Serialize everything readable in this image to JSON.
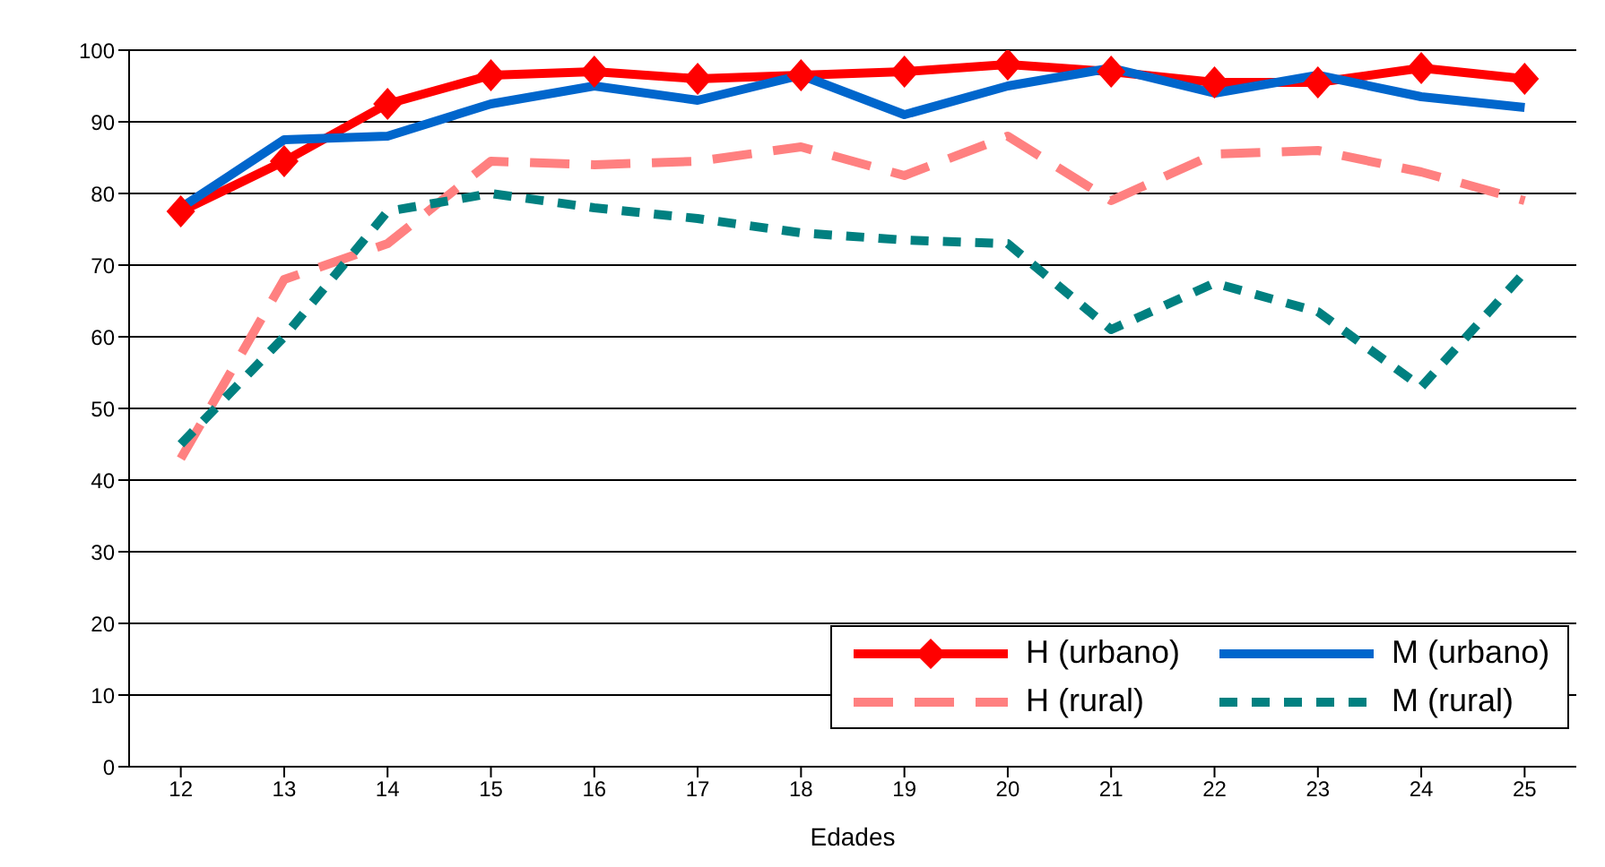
{
  "chart_data": {
    "type": "line",
    "xlabel": "Edades",
    "x": [
      12,
      13,
      14,
      15,
      16,
      17,
      18,
      19,
      20,
      21,
      22,
      23,
      24,
      25
    ],
    "xlim": [
      11.5,
      25.5
    ],
    "xticks": [
      12,
      13,
      14,
      15,
      16,
      17,
      18,
      19,
      20,
      21,
      22,
      23,
      24,
      25
    ],
    "ylim": [
      0,
      100
    ],
    "yticks": [
      0,
      10,
      20,
      30,
      40,
      50,
      60,
      70,
      80,
      90,
      100
    ],
    "grid": "y",
    "legend": "bottom right",
    "series": [
      {
        "name": "H (urbano)",
        "color": "#ff0000",
        "marker": "diamond",
        "line_style": "solid",
        "values": [
          77.5,
          84.5,
          92.5,
          96.5,
          97,
          96,
          96.5,
          97,
          98,
          97,
          95.5,
          95.5,
          97.5,
          96
        ]
      },
      {
        "name": "M (urbano)",
        "color": "#0066cc",
        "marker": "none",
        "line_style": "solid",
        "values": [
          78,
          87.5,
          88,
          92.5,
          95,
          93,
          96.5,
          91,
          95,
          97.5,
          94,
          96.5,
          93.5,
          92
        ]
      },
      {
        "name": "H (rural)",
        "color": "#ff8080",
        "marker": "none",
        "line_style": "dashed",
        "values": [
          43,
          68,
          73,
          84.5,
          84,
          84.5,
          86.5,
          82.5,
          88,
          79,
          85.5,
          86,
          83,
          79
        ]
      },
      {
        "name": "M (rural)",
        "color": "#008080",
        "marker": "none",
        "line_style": "dotted",
        "values": [
          45,
          60,
          77.5,
          80,
          78,
          76.5,
          74.5,
          73.5,
          73,
          61,
          67.5,
          63.5,
          53,
          69
        ]
      }
    ]
  }
}
